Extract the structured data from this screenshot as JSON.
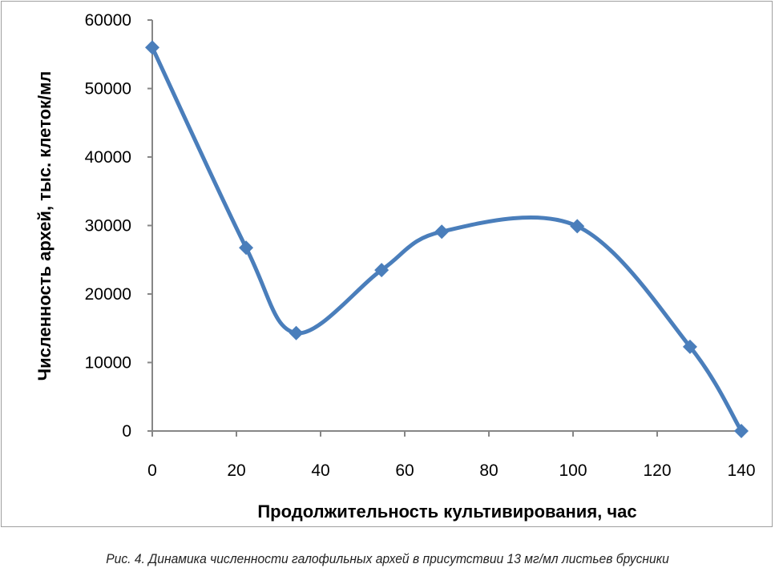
{
  "chart_data": {
    "type": "line",
    "smooth": true,
    "title": "",
    "xlabel": "Продолжительность  культивирования,  час",
    "ylabel": "Численность  архей,  тыс.  клеток/мл",
    "xlim": [
      0,
      140
    ],
    "ylim": [
      0,
      60000
    ],
    "xticks": [
      "0",
      "20",
      "40",
      "60",
      "80",
      "100",
      "120",
      "140"
    ],
    "yticks": [
      "0",
      "10000",
      "20000",
      "30000",
      "40000",
      "50000",
      "60000"
    ],
    "grid": false,
    "legend": "none",
    "series": [
      {
        "name": "Численность архей",
        "color": "#4a7ebb",
        "marker": "diamond",
        "x": [
          0,
          22.3,
          34.2,
          54.5,
          68.8,
          101,
          127.8,
          140
        ],
        "y": [
          56000,
          26750,
          14300,
          23500,
          29100,
          29900,
          12300,
          0
        ]
      }
    ]
  },
  "caption": "Рис. 4. Динамика численности галофильных архей в присутствии 13 мг/мл листьев брусники"
}
